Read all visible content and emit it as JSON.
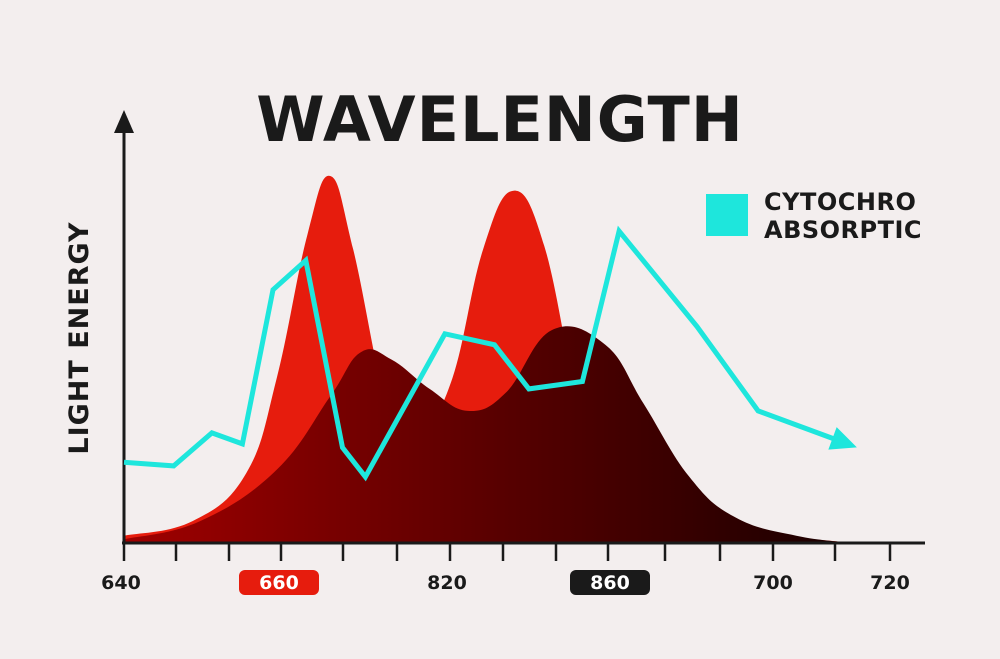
{
  "chart_data": {
    "type": "area",
    "title": "WAVELENGTH",
    "ylabel": "LIGHT ENERGY",
    "xlabel": "",
    "x_tick_labels": [
      "640",
      "660",
      "820",
      "860",
      "700",
      "720"
    ],
    "highlighted_ticks": [
      {
        "label": "660",
        "color": "#e61c0d"
      },
      {
        "label": "860",
        "color": "#1a1a1a"
      }
    ],
    "legend": {
      "lines": [
        "CYTOCHRO",
        "ABSORPTIC"
      ],
      "color": "#1ee6dc",
      "placement": "top-right"
    },
    "ylim": [
      0,
      100
    ],
    "series": [
      {
        "kind": "area",
        "color": "#e61c0d",
        "x": [
          0,
          0.09,
          0.16,
          0.2,
          0.24,
          0.27,
          0.3,
          0.35,
          0.39,
          0.43,
          0.47,
          0.51,
          0.55,
          0.59,
          0.62,
          0.65,
          0.69,
          0.75,
          0.82,
          0.9,
          0.96,
          1.0
        ],
        "y": [
          2,
          6,
          19,
          45,
          84,
          100,
          80,
          33,
          31,
          45,
          80,
          96,
          81,
          42,
          22,
          14,
          8,
          4,
          2,
          1,
          0,
          0
        ]
      },
      {
        "kind": "area",
        "color": "#1a0000",
        "x": [
          0,
          0.1,
          0.2,
          0.27,
          0.31,
          0.35,
          0.4,
          0.45,
          0.5,
          0.56,
          0.63,
          0.68,
          0.74,
          0.8,
          0.88,
          0.96,
          1.0
        ],
        "y": [
          1,
          6,
          20,
          40,
          52,
          50,
          42,
          36,
          41,
          58,
          54,
          38,
          18,
          7,
          2,
          0,
          0
        ]
      },
      {
        "kind": "line",
        "color": "#1ee6dc",
        "x": [
          0,
          0.065,
          0.115,
          0.155,
          0.195,
          0.238,
          0.286,
          0.316,
          0.42,
          0.485,
          0.53,
          0.6,
          0.648,
          0.75,
          0.83,
          0.947
        ],
        "y": [
          22,
          21,
          30,
          27,
          69,
          77,
          26,
          18,
          57,
          54,
          42,
          44,
          85,
          59,
          36,
          27
        ]
      }
    ]
  }
}
